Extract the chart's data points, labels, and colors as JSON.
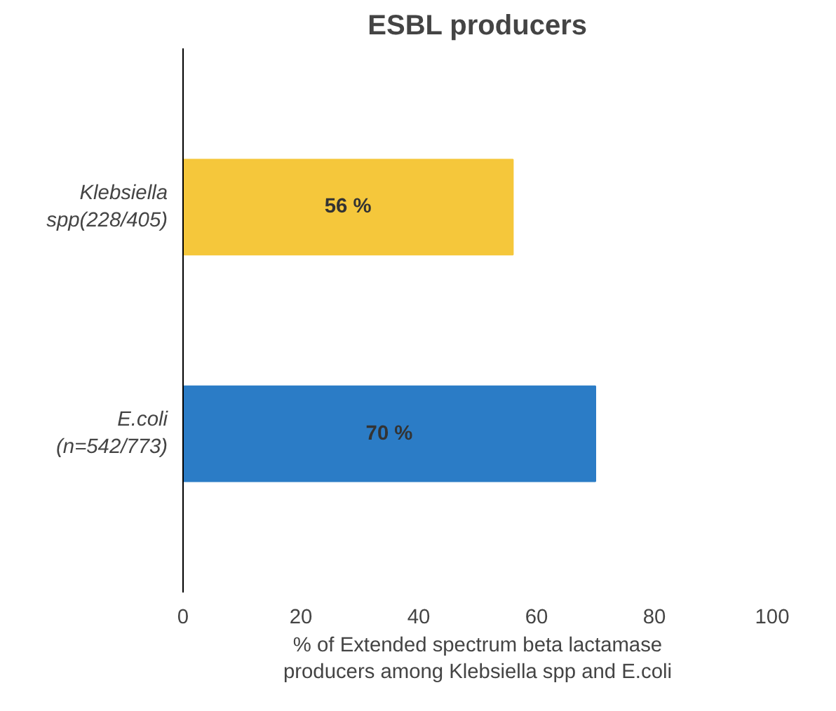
{
  "chart_data": {
    "type": "bar",
    "orientation": "horizontal",
    "title": "ESBL producers",
    "categories": [
      "Klebsiella\nspp(228/405)",
      "E.coli\n(n=542/773)"
    ],
    "values": [
      56,
      70
    ],
    "colors": [
      "#f5c73b",
      "#2b7cc6"
    ],
    "value_labels": [
      "56 %",
      "70 %"
    ],
    "xlim": [
      0,
      100
    ],
    "xticks": [
      0,
      20,
      40,
      60,
      80,
      100
    ],
    "xlabel": "% of Extended spectrum beta lactamase\nproducers among Klebsiella spp and E.coli",
    "grid": false
  }
}
